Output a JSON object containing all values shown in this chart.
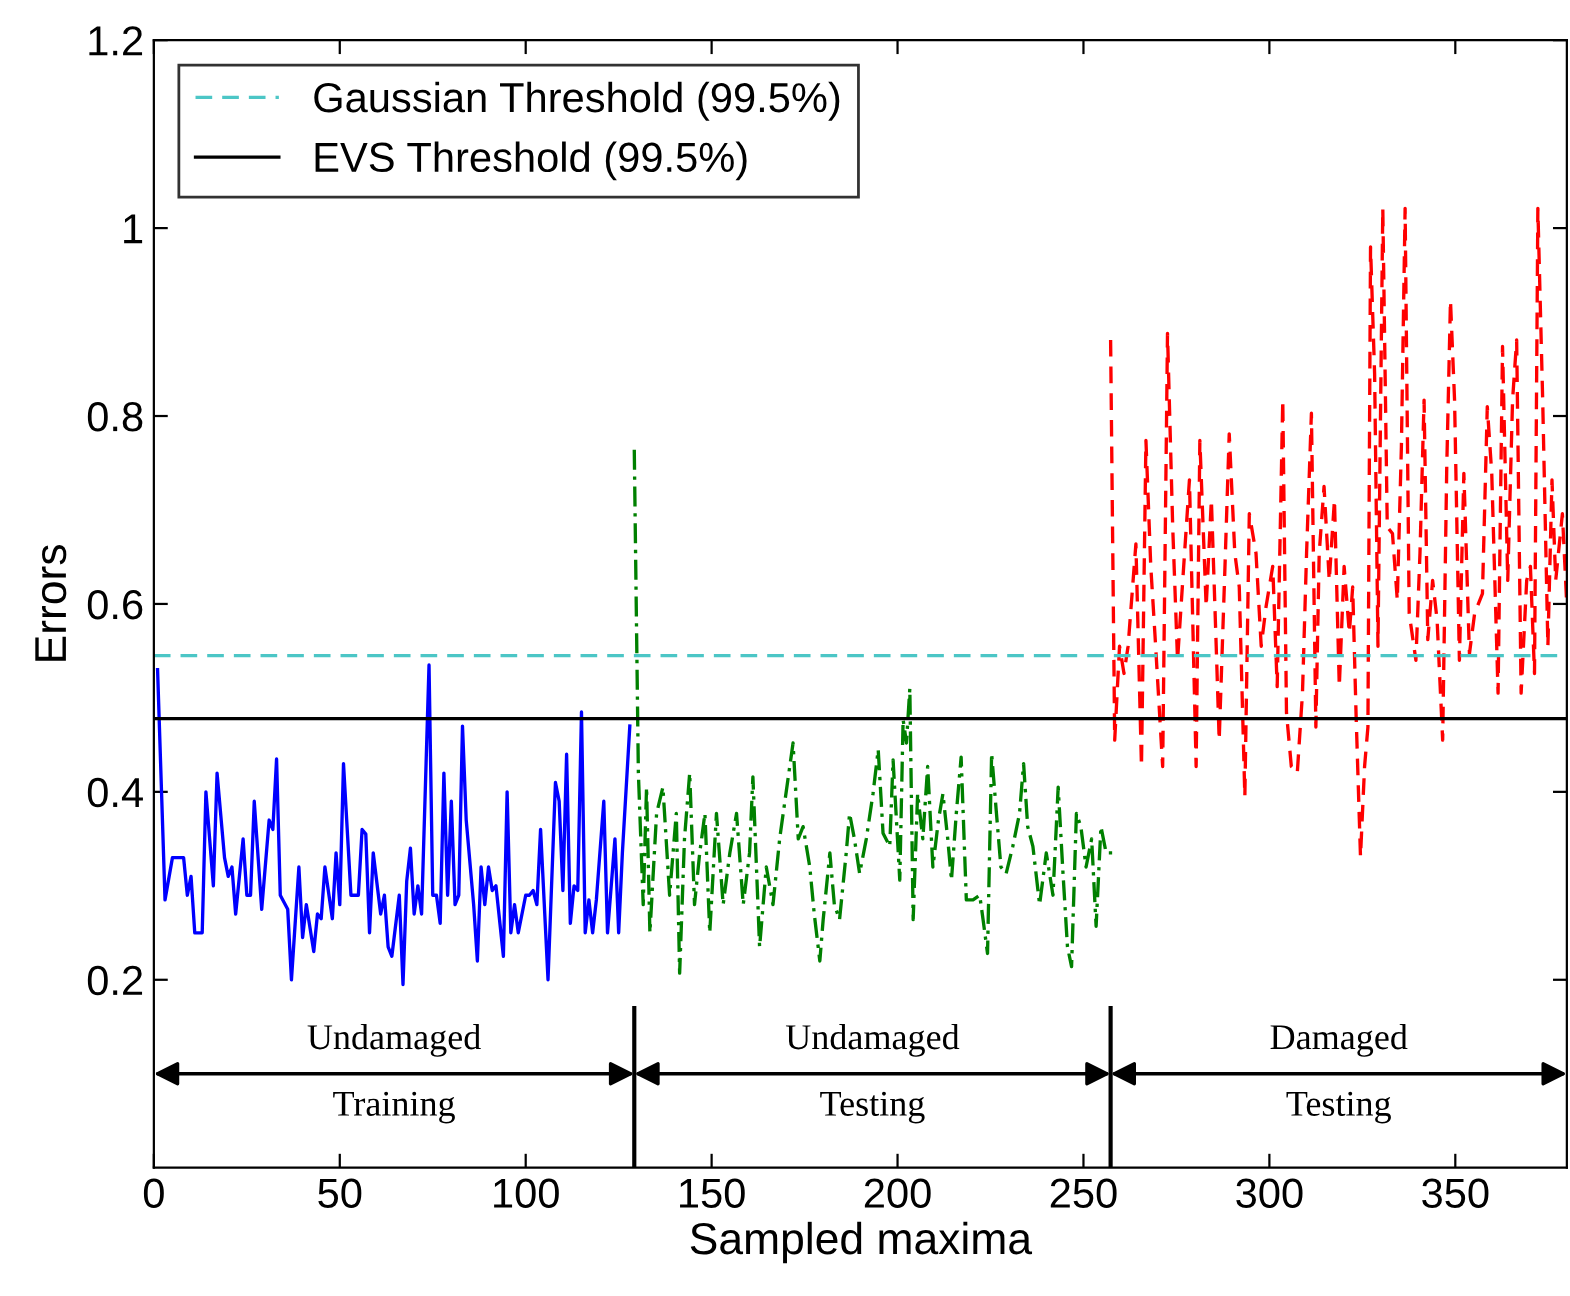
{
  "chart_data": {
    "type": "line",
    "xlabel": "Sampled maxima",
    "ylabel": "Errors",
    "xlim": [
      0,
      380
    ],
    "ylim": [
      0,
      1.2
    ],
    "xticks": [
      0,
      50,
      100,
      150,
      200,
      250,
      300,
      350
    ],
    "yticks": [
      0.2,
      0.4,
      0.6,
      0.8,
      {
        "value": 1,
        "label": "1"
      },
      1.2
    ],
    "grid": false,
    "legend": "top left",
    "annotations": [
      "Undamaged",
      "Training",
      "Undamaged",
      "Testing",
      "Damaged",
      "Testing"
    ],
    "series": [
      {
        "color": "#0000ff",
        "line_style": "solid",
        "x": [
          1,
          3,
          5,
          8,
          9,
          10,
          11,
          13,
          14,
          16,
          17,
          19,
          20,
          21,
          22,
          24,
          25,
          26,
          27,
          29,
          31,
          32,
          33,
          34,
          36,
          37,
          39,
          40,
          41,
          43,
          44,
          45,
          46,
          48,
          49,
          50,
          51,
          53,
          55,
          56,
          57,
          58,
          59,
          61,
          62,
          63,
          64,
          66,
          67,
          68,
          69,
          70,
          71,
          72,
          74,
          75,
          76,
          77,
          78,
          79,
          80,
          81,
          82,
          83,
          84,
          86,
          87,
          88,
          89,
          90,
          91,
          92,
          94,
          95,
          96,
          97,
          98,
          100,
          101,
          102,
          103,
          104,
          106,
          108,
          109,
          110,
          111,
          112,
          113,
          114,
          115,
          116,
          117,
          118,
          119,
          121,
          122,
          124,
          125,
          126,
          128
        ],
        "values": [
          0.53,
          0.285,
          0.33,
          0.33,
          0.29,
          0.31,
          0.25,
          0.25,
          0.4,
          0.3,
          0.42,
          0.33,
          0.31,
          0.32,
          0.27,
          0.35,
          0.29,
          0.29,
          0.39,
          0.275,
          0.37,
          0.36,
          0.435,
          0.29,
          0.275,
          0.2,
          0.32,
          0.245,
          0.28,
          0.23,
          0.27,
          0.265,
          0.32,
          0.265,
          0.335,
          0.28,
          0.43,
          0.29,
          0.29,
          0.36,
          0.355,
          0.25,
          0.335,
          0.27,
          0.29,
          0.235,
          0.225,
          0.29,
          0.195,
          0.305,
          0.34,
          0.27,
          0.3,
          0.27,
          0.535,
          0.29,
          0.29,
          0.26,
          0.42,
          0.29,
          0.39,
          0.28,
          0.29,
          0.47,
          0.37,
          0.28,
          0.22,
          0.32,
          0.28,
          0.32,
          0.295,
          0.3,
          0.225,
          0.4,
          0.25,
          0.28,
          0.25,
          0.29,
          0.29,
          0.295,
          0.28,
          0.36,
          0.2,
          0.41,
          0.39,
          0.295,
          0.44,
          0.26,
          0.3,
          0.295,
          0.485,
          0.25,
          0.285,
          0.25,
          0.285,
          0.39,
          0.25,
          0.35,
          0.25,
          0.335,
          0.47
        ]
      },
      {
        "color": "#008000",
        "line_style": "dashdot",
        "x": [
          129.2,
          130.3,
          131.6,
          132.5,
          133.4,
          135.2,
          136.9,
          138.7,
          140.5,
          141.4,
          142.7,
          144.1,
          145.4,
          146.8,
          148.2,
          149.5,
          151.3,
          153.1,
          154.9,
          156.7,
          158.5,
          160.2,
          161.1,
          162.9,
          164.7,
          166.5,
          168.3,
          169.7,
          171.9,
          173.3,
          174.6,
          176.4,
          177.6,
          179.1,
          180.0,
          181.8,
          183.0,
          184.4,
          186.2,
          187.1,
          188.4,
          189.8,
          191.6,
          193.4,
          194.8,
          196.1,
          197.9,
          198.8,
          200.6,
          201.5,
          202.4,
          203.3,
          204.2,
          205.4,
          206.8,
          208.1,
          209.5,
          211.0,
          212.2,
          213.5,
          214.5,
          215.8,
          217.1,
          218.5,
          220.3,
          222.1,
          223.0,
          224.2,
          225.3,
          226.6,
          227.8,
          229.2,
          231.0,
          232.8,
          233.9,
          235.0,
          236.4,
          238.2,
          240.0,
          241.8,
          243.2,
          244.5,
          245.7,
          246.8,
          248.1,
          249.3,
          250.7,
          252.2,
          253.4,
          254.7,
          256.1,
          257.9
        ],
        "values": [
          0.764,
          0.42,
          0.28,
          0.405,
          0.25,
          0.377,
          0.405,
          0.29,
          0.377,
          0.207,
          0.35,
          0.42,
          0.28,
          0.335,
          0.377,
          0.25,
          0.377,
          0.28,
          0.335,
          0.377,
          0.28,
          0.335,
          0.416,
          0.235,
          0.32,
          0.28,
          0.35,
          0.39,
          0.452,
          0.35,
          0.363,
          0.32,
          0.27,
          0.22,
          0.264,
          0.335,
          0.28,
          0.264,
          0.335,
          0.377,
          0.35,
          0.313,
          0.35,
          0.398,
          0.445,
          0.356,
          0.342,
          0.434,
          0.306,
          0.477,
          0.452,
          0.51,
          0.264,
          0.398,
          0.35,
          0.427,
          0.32,
          0.37,
          0.398,
          0.35,
          0.306,
          0.377,
          0.437,
          0.285,
          0.285,
          0.29,
          0.264,
          0.228,
          0.441,
          0.377,
          0.32,
          0.313,
          0.342,
          0.377,
          0.43,
          0.363,
          0.342,
          0.28,
          0.335,
          0.29,
          0.405,
          0.313,
          0.235,
          0.214,
          0.377,
          0.363,
          0.32,
          0.35,
          0.257,
          0.363,
          0.335,
          0.335
        ]
      },
      {
        "color": "#ff0000",
        "line_style": "dashed",
        "x": [
          257.3,
          258.4,
          259.7,
          260.9,
          262.0,
          264.1,
          265.6,
          266.8,
          268.1,
          269.2,
          271.3,
          272.6,
          274.0,
          275.3,
          276.7,
          278.5,
          280.3,
          281.3,
          283.0,
          284.4,
          285.7,
          286.5,
          288.0,
          289.2,
          290.7,
          291.9,
          293.4,
          294.6,
          296.4,
          297.8,
          299.1,
          300.9,
          302.1,
          303.6,
          304.6,
          305.9,
          307.5,
          308.9,
          310.0,
          311.3,
          312.5,
          313.4,
          314.7,
          316.1,
          317.5,
          318.8,
          320.1,
          321.5,
          322.4,
          323.3,
          324.5,
          325.6,
          326.5,
          327.2,
          328.3,
          329.2,
          330.5,
          331.7,
          333.1,
          334.4,
          335.5,
          336.5,
          337.6,
          339.4,
          340.5,
          341.6,
          342.6,
          343.9,
          345.1,
          346.6,
          347.7,
          348.7,
          349.8,
          351.1,
          352.3,
          353.8,
          355.2,
          357.3,
          358.6,
          359.8,
          361.5,
          362.7,
          364.1,
          365.4,
          366.5,
          367.7,
          369.2,
          370.2,
          371.3,
          372.2,
          373.5,
          374.9,
          376.0,
          377.0,
          378.8,
          380
        ],
        "values": [
          0.881,
          0.455,
          0.555,
          0.526,
          0.555,
          0.664,
          0.427,
          0.774,
          0.64,
          0.569,
          0.427,
          0.888,
          0.682,
          0.54,
          0.625,
          0.732,
          0.427,
          0.774,
          0.597,
          0.711,
          0.555,
          0.455,
          0.633,
          0.781,
          0.654,
          0.618,
          0.395,
          0.696,
          0.654,
          0.555,
          0.597,
          0.64,
          0.512,
          0.817,
          0.484,
          0.427,
          0.42,
          0.505,
          0.654,
          0.803,
          0.469,
          0.654,
          0.725,
          0.625,
          0.711,
          0.512,
          0.64,
          0.569,
          0.618,
          0.484,
          0.331,
          0.427,
          0.469,
          0.98,
          0.845,
          0.555,
          1.021,
          0.682,
          0.675,
          0.604,
          0.767,
          1.021,
          0.59,
          0.54,
          0.654,
          0.817,
          0.562,
          0.625,
          0.583,
          0.455,
          0.746,
          0.923,
          0.817,
          0.54,
          0.739,
          0.547,
          0.59,
          0.611,
          0.81,
          0.739,
          0.505,
          0.874,
          0.625,
          0.817,
          0.881,
          0.505,
          0.625,
          0.64,
          0.526,
          1.021,
          0.817,
          0.555,
          0.732,
          0.625,
          0.696,
          0.597
        ]
      },
      {
        "name": "Gaussian Threshold (99.5%)",
        "color": "#4cc6c6",
        "line_style": "dashed",
        "x": [
          0,
          380
        ],
        "values": [
          0.545,
          0.545
        ]
      },
      {
        "name": "EVS Threshold (99.5%)",
        "color": "#000000",
        "line_style": "solid",
        "x": [
          0,
          380
        ],
        "values": [
          0.478,
          0.478
        ]
      }
    ]
  }
}
